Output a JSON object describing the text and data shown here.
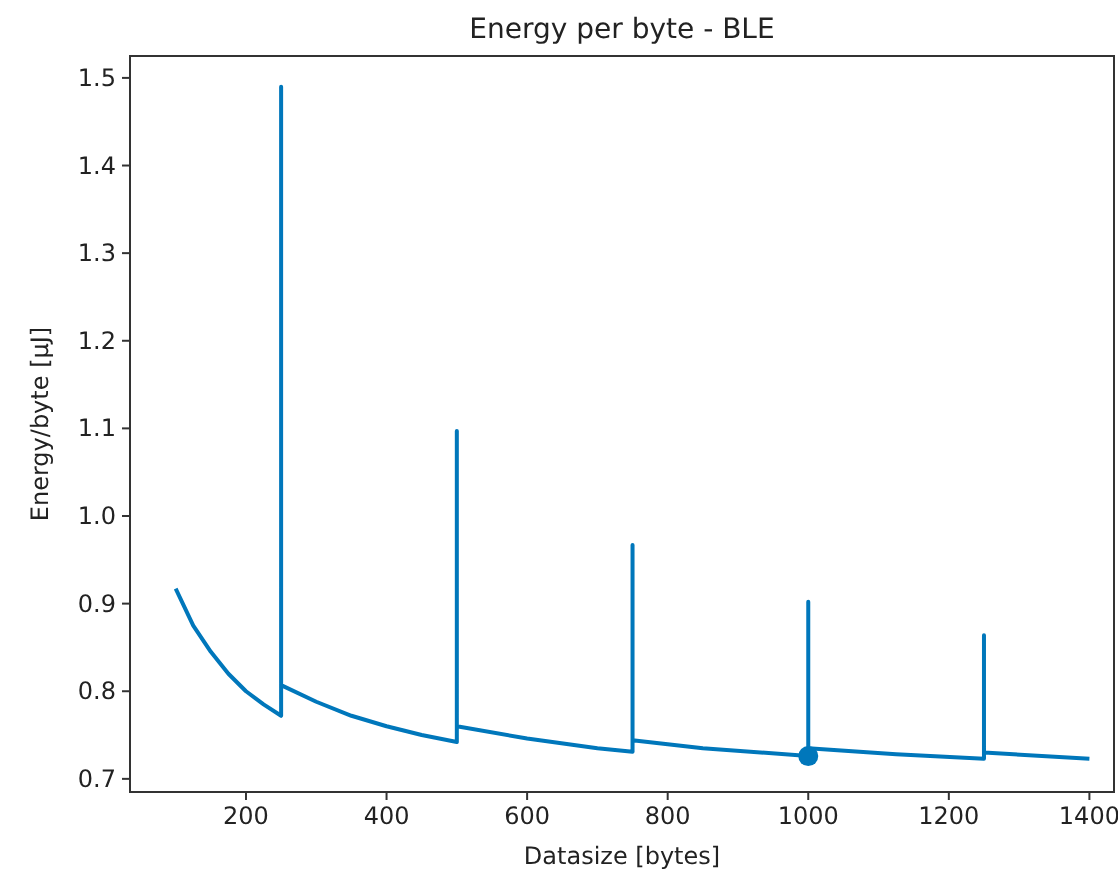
{
  "chart_data": {
    "type": "line",
    "title": "Energy per byte - BLE",
    "xlabel": "Datasize [bytes]",
    "ylabel": "Energy/byte [µJ]",
    "xlim": [
      35,
      1435
    ],
    "xticks": [
      200,
      400,
      600,
      800,
      1000,
      1200,
      1400
    ],
    "ylim": [
      0.685,
      1.525
    ],
    "yticks": [
      {
        "value": 0.7,
        "label": "0.7"
      },
      {
        "value": 0.8,
        "label": "0.8"
      },
      {
        "value": 0.9,
        "label": "0.9"
      },
      {
        "value": 1.0,
        "label": "1.0"
      },
      {
        "value": 1.1,
        "label": "1.1"
      },
      {
        "value": 1.2,
        "label": "1.2"
      },
      {
        "value": 1.3,
        "label": "1.3"
      },
      {
        "value": 1.4,
        "label": "1.4"
      },
      {
        "value": 1.5,
        "label": "1.5"
      }
    ],
    "grid": false,
    "series": [
      {
        "color": "#0077bb",
        "x": [
          100,
          125,
          150,
          175,
          200,
          225,
          250,
          250,
          250,
          300,
          350,
          400,
          450,
          500,
          500,
          500,
          600,
          700,
          750,
          750,
          750,
          850,
          1000,
          1000,
          1000,
          1125,
          1250,
          1250,
          1250,
          1400
        ],
        "values": [
          0.917,
          0.875,
          0.845,
          0.82,
          0.8,
          0.785,
          0.772,
          1.49,
          0.807,
          0.788,
          0.772,
          0.76,
          0.75,
          0.742,
          1.097,
          0.76,
          0.746,
          0.735,
          0.731,
          0.967,
          0.744,
          0.735,
          0.726,
          0.902,
          0.735,
          0.728,
          0.723,
          0.864,
          0.73,
          0.723
        ]
      },
      {
        "type": "scatter",
        "color": "#0077bb",
        "marker": "circle",
        "x": [
          1000
        ],
        "values": [
          0.726
        ]
      }
    ]
  }
}
